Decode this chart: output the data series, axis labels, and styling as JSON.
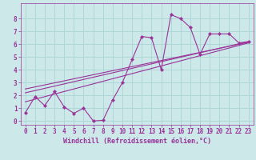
{
  "bg_color": "#cce8e8",
  "grid_color": "#aad4d4",
  "line_color": "#993399",
  "xlabel": "Windchill (Refroidissement éolien,°C)",
  "xlim": [
    -0.5,
    23.5
  ],
  "ylim": [
    -0.3,
    9.2
  ],
  "xticks": [
    0,
    1,
    2,
    3,
    4,
    5,
    6,
    7,
    8,
    9,
    10,
    11,
    12,
    13,
    14,
    15,
    16,
    17,
    18,
    19,
    20,
    21,
    22,
    23
  ],
  "yticks": [
    0,
    1,
    2,
    3,
    4,
    5,
    6,
    7,
    8
  ],
  "series1_x": [
    0,
    1,
    2,
    3,
    4,
    5,
    6,
    7,
    8,
    9,
    10,
    11,
    12,
    13,
    14,
    15,
    16,
    17,
    18,
    19,
    20,
    21,
    22,
    23
  ],
  "series1_y": [
    0.65,
    1.9,
    1.2,
    2.3,
    1.1,
    0.6,
    1.0,
    0.0,
    0.05,
    1.65,
    3.0,
    4.8,
    6.6,
    6.5,
    4.0,
    8.3,
    8.0,
    7.3,
    5.2,
    6.8,
    6.8,
    6.8,
    6.1,
    6.2
  ],
  "series2_x": [
    0,
    23
  ],
  "series2_y": [
    2.2,
    6.2
  ],
  "series3_x": [
    0,
    23
  ],
  "series3_y": [
    1.5,
    6.1
  ],
  "series4_x": [
    0,
    23
  ],
  "series4_y": [
    2.5,
    6.15
  ],
  "font_family": "monospace",
  "xlabel_fontsize": 6.0,
  "tick_fontsize": 5.5,
  "lw": 0.8,
  "markersize": 2.2
}
